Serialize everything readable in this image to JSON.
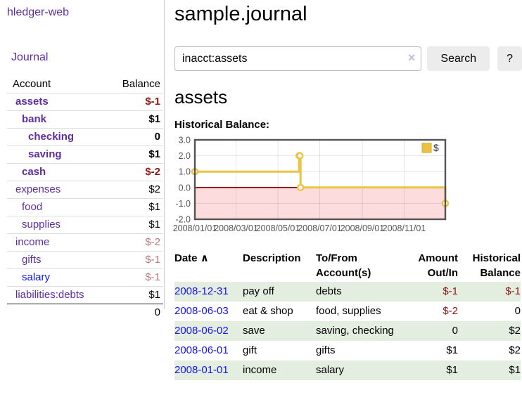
{
  "colors": {
    "link_purple": "#5f2da0",
    "link_blue": "#1414ee",
    "negative_bold": "#8f1616",
    "negative_soft": "#bd7777",
    "row_stripe_green": "#e4eee0",
    "button_gray": "#ececec",
    "series_yellow": "#edc240",
    "chart_frame_gray": "#545454",
    "negative_region_pink": "#fcdcdc",
    "zero_line_dark_red": "#8b0000"
  },
  "sidebar": {
    "app_title": "hledger-web",
    "nav": [
      {
        "label": "Journal"
      }
    ],
    "accounts_table": {
      "columns": [
        "Account",
        "Balance"
      ],
      "rows": [
        {
          "name": "assets",
          "indent": 1,
          "bold": true,
          "balance": "$-1",
          "neg": true
        },
        {
          "name": "bank",
          "indent": 2,
          "bold": true,
          "balance": "$1",
          "neg": false
        },
        {
          "name": "checking",
          "indent": 3,
          "bold": true,
          "balance": "0",
          "neg": false
        },
        {
          "name": "saving",
          "indent": 3,
          "bold": true,
          "balance": "$1",
          "neg": false
        },
        {
          "name": "cash",
          "indent": 2,
          "bold": true,
          "balance": "$-2",
          "neg": true
        },
        {
          "name": "expenses",
          "indent": 1,
          "bold": false,
          "balance": "$2",
          "neg": false
        },
        {
          "name": "food",
          "indent": 2,
          "bold": false,
          "balance": "$1",
          "neg": false
        },
        {
          "name": "supplies",
          "indent": 2,
          "bold": false,
          "balance": "$1",
          "neg": false
        },
        {
          "name": "income",
          "indent": 1,
          "bold": false,
          "balance": "$-2",
          "neg": true
        },
        {
          "name": "gifts",
          "indent": 2,
          "bold": false,
          "balance": "$-1",
          "neg": true
        },
        {
          "name": "salary",
          "indent": 2,
          "bold": false,
          "balance": "$-1",
          "neg": true,
          "visited": true
        },
        {
          "name": "liabilities:debts",
          "indent": 1,
          "bold": false,
          "balance": "$1",
          "neg": false
        }
      ],
      "total": "0"
    }
  },
  "main": {
    "title": "sample.journal",
    "search": {
      "value": "inacct:assets",
      "clear_icon": "×",
      "button_label": "Search",
      "help_button_label": "?"
    },
    "account_heading": "assets",
    "chart_label": "Historical Balance:",
    "transactions": {
      "columns": [
        "Date",
        "Description",
        "To/From Account(s)",
        "Amount Out/In",
        "Historical Balance"
      ],
      "sort_icon": "∧",
      "rows": [
        {
          "date": "2008-12-31",
          "description": "pay off",
          "accounts": "debts",
          "amount": "$-1",
          "amount_neg": true,
          "balance": "$-1",
          "balance_neg": true
        },
        {
          "date": "2008-06-03",
          "description": "eat & shop",
          "accounts": "food, supplies",
          "amount": "$-2",
          "amount_neg": true,
          "balance": "0",
          "balance_neg": false
        },
        {
          "date": "2008-06-02",
          "description": "save",
          "accounts": "saving, checking",
          "amount": "0",
          "amount_neg": false,
          "balance": "$2",
          "balance_neg": false
        },
        {
          "date": "2008-06-01",
          "description": "gift",
          "accounts": "gifts",
          "amount": "$1",
          "amount_neg": false,
          "balance": "$2",
          "balance_neg": false
        },
        {
          "date": "2008-01-01",
          "description": "income",
          "accounts": "salary",
          "amount": "$1",
          "amount_neg": false,
          "balance": "$1",
          "balance_neg": false
        }
      ]
    }
  },
  "chart_data": {
    "type": "line",
    "step": true,
    "title": "Historical Balance:",
    "series": [
      {
        "name": "$",
        "color": "#edc240",
        "points": [
          [
            "2008-01-01",
            1
          ],
          [
            "2008-06-01",
            2
          ],
          [
            "2008-06-02",
            2
          ],
          [
            "2008-06-03",
            0
          ],
          [
            "2008-12-31",
            -1
          ]
        ]
      }
    ],
    "x_range": [
      "2008-01-01",
      "2008-12-31"
    ],
    "y_range": [
      -2,
      3
    ],
    "y_ticks": [
      3.0,
      2.0,
      1.0,
      0.0,
      -1.0,
      -2.0
    ],
    "y_tick_labels": [
      "3.0",
      "2.0",
      "1.0",
      "0.0",
      "-1.0",
      "-2.0"
    ],
    "x_tick_labels": [
      "2008/01/01",
      "2008/03/01",
      "2008/05/01",
      "2008/07/01",
      "2008/09/01",
      "2008/11/01"
    ],
    "legend": {
      "label": "$",
      "position": "top-right"
    },
    "grid": true,
    "negative_region_color": "#fcdcdc",
    "zero_line_color": "#8b0000",
    "frame_color": "#545454",
    "tick_text_color": "#545454"
  }
}
